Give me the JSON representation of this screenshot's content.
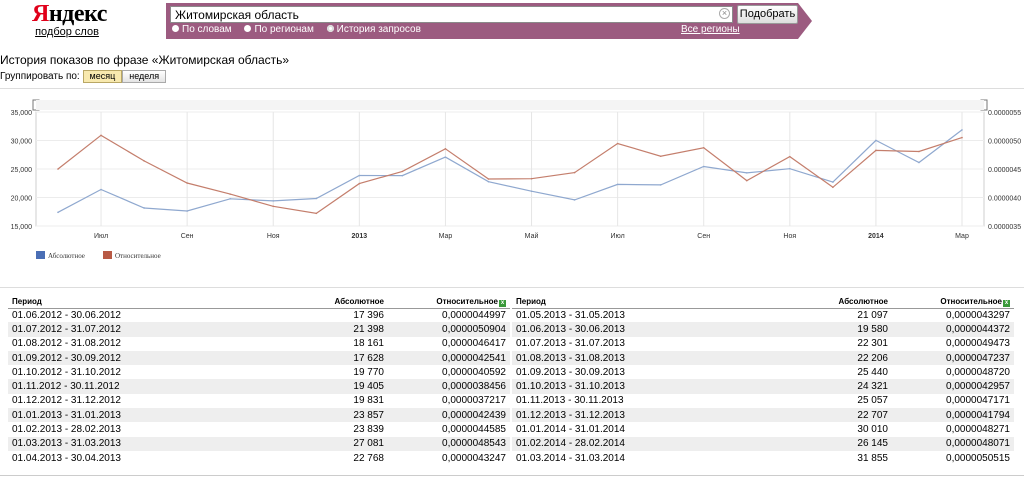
{
  "logo": {
    "word": "Яндекс",
    "first": "Я",
    "rest": "ндекс",
    "sub": "подбор слов"
  },
  "search": {
    "value": "Житомирская область",
    "button": "Подобрать",
    "clear_icon": "×"
  },
  "modes": [
    {
      "label": "По словам",
      "selected": false
    },
    {
      "label": "По регионам",
      "selected": false
    },
    {
      "label": "История запросов",
      "selected": true
    }
  ],
  "regions_link": "Все регионы",
  "page_title": "История показов по фразе «Житомирская область»",
  "grouping": {
    "label": "Группировать по:",
    "options": [
      "месяц",
      "неделя"
    ],
    "active": "месяц"
  },
  "chart_data": {
    "type": "line",
    "title": "",
    "x_tick_labels": [
      "Июл",
      "Сен",
      "Ноя",
      "2013",
      "Мар",
      "Май",
      "Июл",
      "Сен",
      "Ноя",
      "2014",
      "Мар"
    ],
    "periods": [
      "2012-06",
      "2012-07",
      "2012-08",
      "2012-09",
      "2012-10",
      "2012-11",
      "2012-12",
      "2013-01",
      "2013-02",
      "2013-03",
      "2013-04",
      "2013-05",
      "2013-06",
      "2013-07",
      "2013-08",
      "2013-09",
      "2013-10",
      "2013-11",
      "2013-12",
      "2014-01",
      "2014-02",
      "2014-03"
    ],
    "y_left": {
      "ticks": [
        "15,000",
        "20,000",
        "25,000",
        "30,000",
        "35,000"
      ],
      "range": [
        15000,
        35000
      ]
    },
    "y_right": {
      "ticks": [
        "0.0000035",
        "0.0000040",
        "0.0000045",
        "0.0000050",
        "0.0000055"
      ],
      "range": [
        3.5e-06,
        5.5e-06
      ]
    },
    "series": [
      {
        "name": "Абсолютное",
        "axis": "left",
        "color": "#8fa8cf",
        "legend_color": "#4a6eb5",
        "values": [
          17396,
          21398,
          18161,
          17628,
          19770,
          19405,
          19831,
          23857,
          23839,
          27081,
          22768,
          21097,
          19580,
          22301,
          22206,
          25440,
          24321,
          25057,
          22707,
          30010,
          26145,
          31855
        ]
      },
      {
        "name": "Относительное",
        "axis": "right",
        "color": "#c47e6c",
        "legend_color": "#b85a45",
        "values": [
          4.4997e-06,
          5.0904e-06,
          4.6417e-06,
          4.2541e-06,
          4.0592e-06,
          3.8456e-06,
          3.7217e-06,
          4.2439e-06,
          4.4585e-06,
          4.8543e-06,
          4.3247e-06,
          4.3297e-06,
          4.4372e-06,
          4.9473e-06,
          4.7237e-06,
          4.872e-06,
          4.2957e-06,
          4.7171e-06,
          4.1794e-06,
          4.8271e-06,
          4.8071e-06,
          5.0515e-06
        ]
      }
    ],
    "grid": true,
    "legend_position": "bottom-left"
  },
  "table": {
    "headers": {
      "period": "Период",
      "abs": "Абсолютное",
      "rel": "Относительное",
      "export_icon": "x"
    },
    "left_rows": [
      [
        "01.06.2012 - 30.06.2012",
        "17 396",
        "0,0000044997"
      ],
      [
        "01.07.2012 - 31.07.2012",
        "21 398",
        "0,0000050904"
      ],
      [
        "01.08.2012 - 31.08.2012",
        "18 161",
        "0,0000046417"
      ],
      [
        "01.09.2012 - 30.09.2012",
        "17 628",
        "0,0000042541"
      ],
      [
        "01.10.2012 - 31.10.2012",
        "19 770",
        "0,0000040592"
      ],
      [
        "01.11.2012 - 30.11.2012",
        "19 405",
        "0,0000038456"
      ],
      [
        "01.12.2012 - 31.12.2012",
        "19 831",
        "0,0000037217"
      ],
      [
        "01.01.2013 - 31.01.2013",
        "23 857",
        "0,0000042439"
      ],
      [
        "01.02.2013 - 28.02.2013",
        "23 839",
        "0,0000044585"
      ],
      [
        "01.03.2013 - 31.03.2013",
        "27 081",
        "0,0000048543"
      ],
      [
        "01.04.2013 - 30.04.2013",
        "22 768",
        "0,0000043247"
      ]
    ],
    "right_rows": [
      [
        "01.05.2013 - 31.05.2013",
        "21 097",
        "0,0000043297"
      ],
      [
        "01.06.2013 - 30.06.2013",
        "19 580",
        "0,0000044372"
      ],
      [
        "01.07.2013 - 31.07.2013",
        "22 301",
        "0,0000049473"
      ],
      [
        "01.08.2013 - 31.08.2013",
        "22 206",
        "0,0000047237"
      ],
      [
        "01.09.2013 - 30.09.2013",
        "25 440",
        "0,0000048720"
      ],
      [
        "01.10.2013 - 31.10.2013",
        "24 321",
        "0,0000042957"
      ],
      [
        "01.11.2013 - 30.11.2013",
        "25 057",
        "0,0000047171"
      ],
      [
        "01.12.2013 - 31.12.2013",
        "22 707",
        "0,0000041794"
      ],
      [
        "01.01.2014 - 31.01.2014",
        "30 010",
        "0,0000048271"
      ],
      [
        "01.02.2014 - 28.02.2014",
        "26 145",
        "0,0000048071"
      ],
      [
        "01.03.2014 - 31.03.2014",
        "31 855",
        "0,0000050515"
      ]
    ]
  }
}
